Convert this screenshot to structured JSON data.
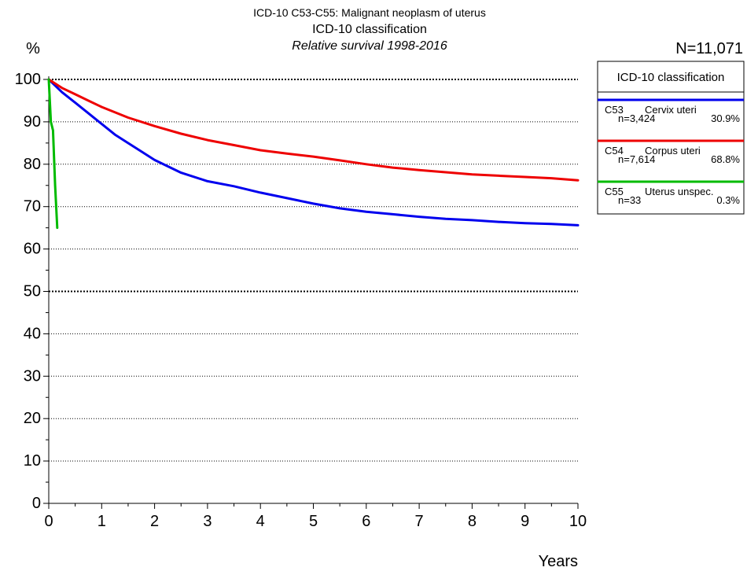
{
  "header": {
    "title_line1": "ICD-10 C53-C55: Malignant neoplasm of uterus",
    "title_line2": "ICD-10 classification",
    "title_line3": "Relative survival 1998-2016",
    "n_total": "N=11,071"
  },
  "chart_data": {
    "type": "line",
    "ylabel": "%",
    "xlabel": "Years",
    "xlim": [
      0,
      10
    ],
    "ylim": [
      0,
      100
    ],
    "x_ticks": [
      "0",
      "1",
      "2",
      "3",
      "4",
      "5",
      "6",
      "7",
      "8",
      "9",
      "10"
    ],
    "y_ticks": [
      "0",
      "10",
      "20",
      "30",
      "40",
      "50",
      "60",
      "70",
      "80",
      "90",
      "100"
    ],
    "grid": "horizontal dotted",
    "legend_title": "ICD-10 classification",
    "legend_position": "right",
    "series": [
      {
        "code": "C53",
        "name": "Cervix uteri",
        "n": "n=3,424",
        "pct": "30.9%",
        "color": "#0000ee",
        "x": [
          0,
          0.25,
          0.5,
          0.75,
          1,
          1.25,
          1.5,
          1.75,
          2,
          2.5,
          3,
          3.5,
          4,
          4.5,
          5,
          5.5,
          6,
          6.5,
          7,
          7.5,
          8,
          8.5,
          9,
          9.5,
          10
        ],
        "y": [
          100,
          97,
          94.5,
          92,
          89.5,
          87,
          85,
          83,
          81,
          78,
          76,
          74.8,
          73.3,
          72,
          70.7,
          69.6,
          68.8,
          68.2,
          67.6,
          67.1,
          66.8,
          66.4,
          66.1,
          65.9,
          65.6
        ]
      },
      {
        "code": "C54",
        "name": "Corpus uteri",
        "n": "n=7,614",
        "pct": "68.8%",
        "color": "#ee0000",
        "x": [
          0,
          0.25,
          0.5,
          0.75,
          1,
          1.5,
          2,
          2.5,
          3,
          3.5,
          4,
          4.5,
          5,
          5.5,
          6,
          6.5,
          7,
          7.5,
          8,
          8.5,
          9,
          9.5,
          10
        ],
        "y": [
          100,
          98,
          96.5,
          95,
          93.5,
          91,
          89,
          87.2,
          85.7,
          84.5,
          83.3,
          82.5,
          81.8,
          80.9,
          80,
          79.2,
          78.6,
          78.1,
          77.6,
          77.3,
          77,
          76.7,
          76.2
        ]
      },
      {
        "code": "C55",
        "name": "Uterus unspec.",
        "n": "n=33",
        "pct": "0.3%",
        "color": "#00bb00",
        "x": [
          0,
          0.04,
          0.08,
          0.12,
          0.16
        ],
        "y": [
          100,
          90,
          88,
          75,
          65
        ]
      }
    ]
  }
}
